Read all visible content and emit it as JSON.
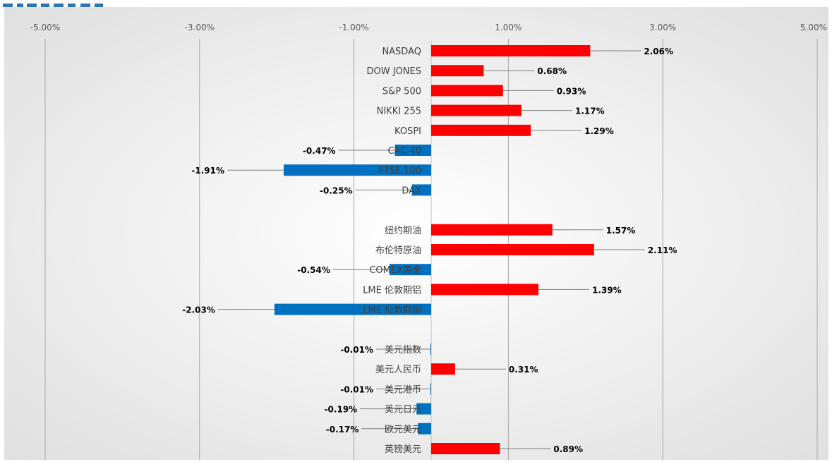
{
  "colors": {
    "positive": "#ff0000",
    "negative": "#0070c0",
    "leader": "#7f7f7f",
    "grid": "#a6a6a6",
    "background_center": "#ffffff",
    "background_edge": "#dedede",
    "header_accent": "#2e75b6"
  },
  "chart_data": {
    "type": "bar",
    "orientation": "horizontal",
    "title": "",
    "xlabel": "",
    "ylabel": "",
    "xlim": [
      -5.5,
      5.0
    ],
    "x_ticks": [
      "-5.00%",
      "-3.00%",
      "-1.00%",
      "1.00%",
      "3.00%",
      "5.00%"
    ],
    "x_tick_values": [
      -5,
      -3,
      -1,
      1,
      3,
      5
    ],
    "grid": "vertical",
    "legend": "none",
    "categories": [
      "NASDAQ",
      "DOW JONES",
      "S&P 500",
      "NIKKI 255",
      "KOSPI",
      "CAC 40",
      "FTSE 100",
      "DAX",
      "",
      "纽约期油",
      "布伦特原油",
      "COMEX黄金",
      "LME 伦敦期铝",
      "LME 伦敦期铜",
      "",
      "美元指数",
      "美元人民币",
      "美元港币",
      "美元日元",
      "欧元美元",
      "英镑美元"
    ],
    "values": [
      2.06,
      0.68,
      0.93,
      1.17,
      1.29,
      -0.47,
      -1.91,
      -0.25,
      null,
      1.57,
      2.11,
      -0.54,
      1.39,
      -2.03,
      null,
      -0.01,
      0.31,
      -0.01,
      -0.19,
      -0.17,
      0.89
    ],
    "data_labels": [
      "2.06%",
      "0.68%",
      "0.93%",
      "1.17%",
      "1.29%",
      "-0.47%",
      "-1.91%",
      "-0.25%",
      "",
      "1.57%",
      "2.11%",
      "-0.54%",
      "1.39%",
      "-2.03%",
      "",
      "-0.01%",
      "0.31%",
      "-0.01%",
      "-0.19%",
      "-0.17%",
      "0.89%"
    ]
  }
}
